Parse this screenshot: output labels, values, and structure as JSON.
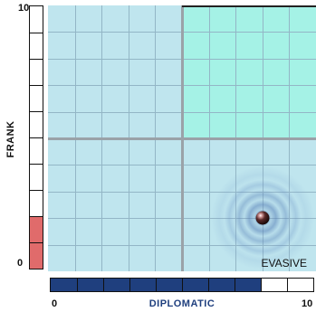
{
  "vertical_axis": {
    "label": "FRANK",
    "min_label": "0",
    "max_label": "10",
    "value": 2,
    "segments": 10,
    "fill_color": "#e06b6b"
  },
  "horizontal_axis": {
    "label": "DIPLOMATIC",
    "min_label": "0",
    "max_label": "10",
    "value": 8,
    "segments": 10,
    "fill_color": "#1f3f7e"
  },
  "plot": {
    "grid_divisions": 10,
    "background_color": "#bfe5ee",
    "highlight_quadrant_color": "#a5f2e6",
    "marker": {
      "x": 8,
      "y": 2
    },
    "quadrant_label": "EVASIVE"
  }
}
